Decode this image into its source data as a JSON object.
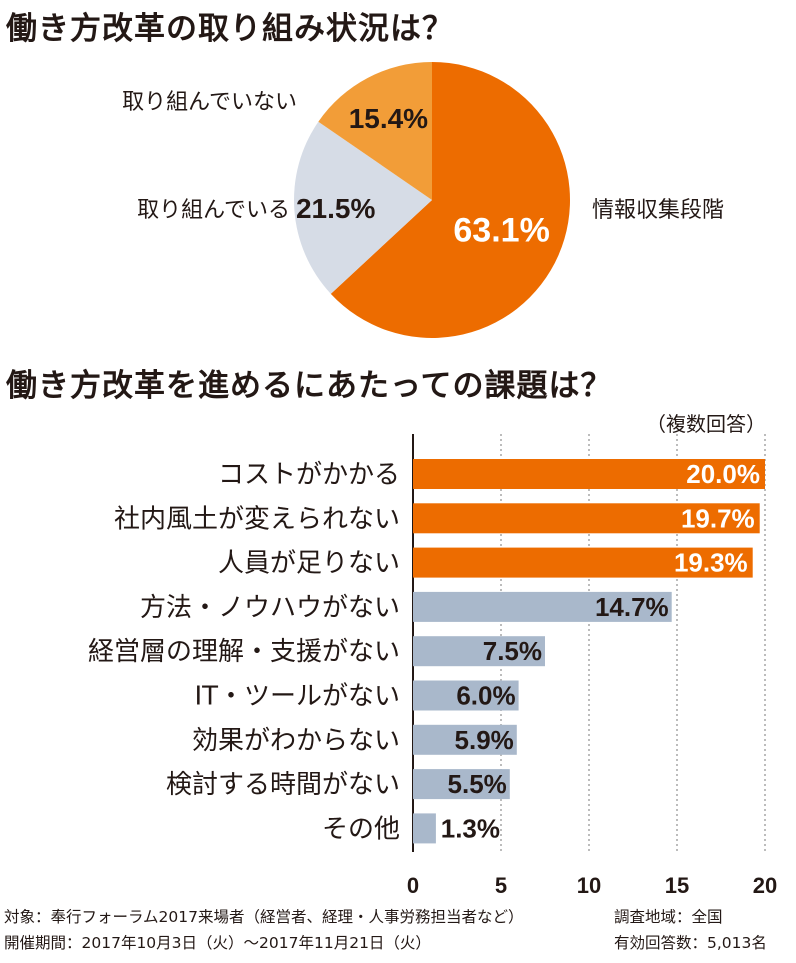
{
  "colors": {
    "orange": "#ED6C00",
    "light_orange": "#F29D38",
    "gray_blue": "#D6DCE6",
    "bar_gray": "#A9B8CB",
    "text": "#231815"
  },
  "chart_data": [
    {
      "type": "pie",
      "title": "働き方改革の取り組み状況は？",
      "slices": [
        {
          "label": "情報収集段階",
          "value": 63.1,
          "value_label": "63.1%",
          "color": "#ED6C00"
        },
        {
          "label": "取り組んでいる",
          "value": 21.5,
          "value_label": "21.5%",
          "color": "#D6DCE6"
        },
        {
          "label": "取り組んでいない",
          "value": 15.4,
          "value_label": "15.4%",
          "color": "#F29D38"
        }
      ]
    },
    {
      "type": "bar",
      "orientation": "horizontal",
      "title": "働き方改革を進めるにあたっての課題は？",
      "note": "（複数回答）",
      "categories": [
        "コストがかかる",
        "社内風土が変えられない",
        "人員が足りない",
        "方法・ノウハウがない",
        "経営層の理解・支援がない",
        "IT・ツールがない",
        "効果がわからない",
        "検討する時間がない",
        "その他"
      ],
      "values": [
        20.0,
        19.7,
        19.3,
        14.7,
        7.5,
        6.0,
        5.9,
        5.5,
        1.3
      ],
      "value_labels": [
        "20.0%",
        "19.7%",
        "19.3%",
        "14.7%",
        "7.5%",
        "6.0%",
        "5.9%",
        "5.5%",
        "1.3%"
      ],
      "highlight_count": 3,
      "xlim": [
        0,
        20
      ],
      "xticks": [
        "0",
        "5",
        "10",
        "15",
        "20"
      ],
      "grid": true
    }
  ],
  "footer": {
    "target": "対象：奉行フォーラム2017来場者（経営者、経理・人事労務担当者など）",
    "period": "開催期間：2017年10月3日（火）〜2017年11月21日（火）",
    "area": "調査地域：全国",
    "count": "有効回答数：5,013名"
  }
}
